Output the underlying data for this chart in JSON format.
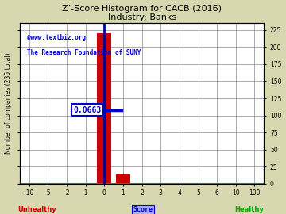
{
  "title": "Z’-Score Histogram for CACB (2016)",
  "subtitle": "Industry: Banks",
  "watermark1": "©www.textbiz.org",
  "watermark2": "The Research Foundation of SUNY",
  "xlabel_score": "Score",
  "xlabel_left": "Unhealthy",
  "xlabel_right": "Healthy",
  "ylabel": "Number of companies (235 total)",
  "right_ytick_labels": [
    "0",
    "25",
    "50",
    "75",
    "100",
    "125",
    "150",
    "175",
    "200",
    "225"
  ],
  "right_ytick_values": [
    0,
    25,
    50,
    75,
    100,
    125,
    150,
    175,
    200,
    225
  ],
  "xtick_labels": [
    "-10",
    "-5",
    "-2",
    "-1",
    "0",
    "1",
    "2",
    "3",
    "4",
    "5",
    "6",
    "10",
    "100"
  ],
  "xtick_positions": [
    0,
    1,
    2,
    3,
    4,
    5,
    6,
    7,
    8,
    9,
    10,
    11,
    12
  ],
  "xlim": [
    -0.5,
    12.5
  ],
  "ylim": [
    0,
    235
  ],
  "background_color": "#d8d8b0",
  "bar_color_industry": "#cc0000",
  "bar_color_company": "#000099",
  "annotation_text": "0.0663",
  "annotation_color": "#0000cc",
  "annotation_bg": "#ffffff",
  "company_score_bin": 4,
  "grid_color": "#888888",
  "title_color": "#000000",
  "watermark_color": "#0000cc",
  "unhealthy_color": "#cc0000",
  "healthy_color": "#00aa00",
  "industry_bar_bin": 4,
  "industry_bar_height": 220,
  "industry_bar2_bin": 5,
  "industry_bar2_height": 13,
  "crosshair_y": 108,
  "crosshair_xmin_bin": 3.55,
  "crosshair_xmax_bin": 4.9
}
